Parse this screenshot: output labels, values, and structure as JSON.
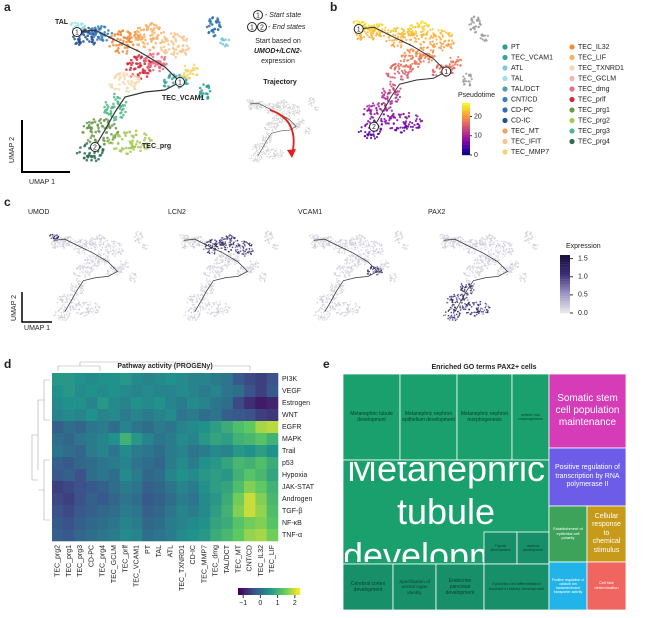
{
  "panel_a": {
    "label": "a",
    "cluster_labels": [
      "TAL",
      "TEC_VCAM1",
      "TEC_prg"
    ],
    "state_numbers": [
      "1",
      "1",
      "2"
    ],
    "axis_labels": {
      "x": "UMAP 1",
      "y": "UMAP 2"
    },
    "key": {
      "start_num": "1",
      "start": "- Start state",
      "end_nums": [
        "1",
        "2"
      ],
      "end": "- End states",
      "note": [
        "Start based on",
        "UMOD+/LCN2-",
        "expression"
      ],
      "trajectory": "Trajectory"
    }
  },
  "panel_b": {
    "label": "b",
    "state_numbers": [
      "1",
      "1",
      "2"
    ],
    "legend": [
      {
        "name": "PT",
        "color": "#2a9d8f"
      },
      {
        "name": "TEC_VCAM1",
        "color": "#38a3a5"
      },
      {
        "name": "ATL",
        "color": "#7fc8d6"
      },
      {
        "name": "TAL",
        "color": "#9fe0e8"
      },
      {
        "name": "TAL/DCT",
        "color": "#4aa0b5"
      },
      {
        "name": "CNT/CD",
        "color": "#3a7fc1"
      },
      {
        "name": "CD-PC",
        "color": "#2f6fb0"
      },
      {
        "name": "CD-IC",
        "color": "#234f96"
      },
      {
        "name": "TEC_MT",
        "color": "#f4a261"
      },
      {
        "name": "TEC_IFIT",
        "color": "#f6c58f"
      },
      {
        "name": "TEC_MMP7",
        "color": "#f2d36b"
      },
      {
        "name": "TEC_IL32",
        "color": "#f08c3a"
      },
      {
        "name": "TEC_LIF",
        "color": "#f7b267"
      },
      {
        "name": "TEC_TXNRD1",
        "color": "#f3d9b1"
      },
      {
        "name": "TEC_GCLM",
        "color": "#f2b5a7"
      },
      {
        "name": "TEC_dmg",
        "color": "#e76f85"
      },
      {
        "name": "TEC_prlf",
        "color": "#d62839"
      },
      {
        "name": "TEC_prg1",
        "color": "#6a994e"
      },
      {
        "name": "TEC_prg2",
        "color": "#a7c957"
      },
      {
        "name": "TEC_prg3",
        "color": "#52b788"
      },
      {
        "name": "TEC_prg4",
        "color": "#2d6a4f"
      }
    ],
    "colorbar": {
      "title": "Pseudotime",
      "lim": [
        0,
        27
      ],
      "ticks": [
        0,
        10,
        20
      ]
    }
  },
  "panel_c": {
    "label": "c",
    "genes": [
      "UMOD",
      "LCN2",
      "VCAM1",
      "PAX2"
    ],
    "axis_labels": {
      "x": "UMAP 1",
      "y": "UMAP 2"
    },
    "colorbar": {
      "title": "Expression",
      "lim": [
        0,
        1.6
      ],
      "ticks": [
        {
          "value": 0,
          "label": "0.0"
        },
        {
          "value": 0.5,
          "label": "0.5"
        },
        {
          "value": 1,
          "label": "1.0"
        },
        {
          "value": 1.5,
          "label": "1.5"
        }
      ]
    }
  },
  "panel_d": {
    "label": "d",
    "title": "Pathway activity (PROGENy)",
    "rows": [
      "PI3K",
      "VEGF",
      "Estrogen",
      "WNT",
      "EGFR",
      "MAPK",
      "Trail",
      "p53",
      "Hypoxia",
      "JAK-STAT",
      "Androgen",
      "TGF-β",
      "NF-κB",
      "TNF-α"
    ],
    "columns": [
      "TEC_prg2",
      "TEC_prg1",
      "TEC_prg3",
      "CD-PC",
      "TEC_prg4",
      "TEC_GCLM",
      "TEC_prlf",
      "TEC_VCAM1",
      "PT",
      "TAL",
      "ATL",
      "TEC_TXNRD1",
      "CD-IC",
      "TEC_MMP7",
      "TEC_dmg",
      "TAL/DCT",
      "TEC_MT",
      "CNT/CD",
      "TEC_IL32",
      "TEC_LIF"
    ],
    "values": [
      [
        0.6,
        0.6,
        0.5,
        0.4,
        0.5,
        0.5,
        0.6,
        0.4,
        0.3,
        0.4,
        0.5,
        0.4,
        0.3,
        0.3,
        0.2,
        0.1,
        -0.3,
        -0.5,
        -0.6,
        -0.4
      ],
      [
        0.5,
        0.6,
        0.4,
        0.5,
        0.4,
        0.5,
        0.4,
        0.3,
        0.4,
        0.3,
        0.3,
        0.4,
        0.3,
        0.2,
        0.3,
        0.1,
        0.0,
        -0.4,
        -0.6,
        -0.3
      ],
      [
        0.4,
        0.5,
        0.5,
        0.3,
        0.6,
        0.4,
        0.3,
        0.5,
        0.4,
        0.5,
        0.3,
        0.2,
        0.4,
        0.3,
        0.1,
        0.0,
        -0.5,
        -0.8,
        -1.0,
        -0.9
      ],
      [
        0.3,
        0.4,
        0.3,
        0.5,
        0.3,
        0.4,
        0.2,
        0.3,
        0.2,
        0.3,
        0.4,
        0.1,
        0.2,
        0.0,
        0.1,
        -0.2,
        -0.3,
        -0.4,
        -0.6,
        -0.7
      ],
      [
        -0.2,
        0.0,
        -0.1,
        0.1,
        0.2,
        0.0,
        0.3,
        0.1,
        0.0,
        0.2,
        0.1,
        0.3,
        0.4,
        0.5,
        0.7,
        0.9,
        1.2,
        1.4,
        1.8,
        1.9
      ],
      [
        0.0,
        -0.1,
        0.1,
        0.2,
        0.3,
        0.5,
        1.0,
        0.6,
        0.3,
        0.1,
        0.2,
        0.4,
        0.3,
        0.6,
        0.8,
        0.7,
        1.0,
        1.1,
        1.3,
        1.0
      ],
      [
        0.1,
        0.0,
        -0.1,
        0.2,
        0.3,
        0.1,
        0.4,
        0.2,
        0.1,
        0.0,
        0.2,
        0.3,
        0.1,
        0.2,
        0.4,
        0.3,
        0.6,
        0.5,
        0.7,
        0.5
      ],
      [
        -0.2,
        -0.3,
        -0.1,
        0.0,
        0.1,
        0.2,
        0.3,
        0.1,
        0.0,
        -0.1,
        0.2,
        0.4,
        0.2,
        0.5,
        0.6,
        0.8,
        1.1,
        1.0,
        1.2,
        0.9
      ],
      [
        -0.3,
        -0.2,
        -0.4,
        0.0,
        0.1,
        0.0,
        0.4,
        0.2,
        -0.1,
        0.0,
        0.3,
        0.5,
        0.4,
        0.6,
        0.7,
        0.6,
        1.0,
        1.3,
        1.1,
        0.8
      ],
      [
        -0.6,
        -0.5,
        -0.4,
        -0.3,
        -0.2,
        0.0,
        0.2,
        0.1,
        -0.2,
        -0.1,
        0.1,
        0.3,
        0.2,
        0.5,
        0.7,
        0.8,
        1.2,
        1.6,
        1.4,
        1.0
      ],
      [
        -0.5,
        -0.6,
        -0.4,
        -0.2,
        -0.3,
        -0.1,
        0.1,
        0.0,
        -0.3,
        -0.2,
        0.0,
        0.2,
        0.1,
        0.4,
        0.6,
        0.9,
        1.5,
        2.0,
        1.6,
        1.1
      ],
      [
        -0.4,
        -0.5,
        -0.3,
        -0.2,
        -0.1,
        0.0,
        0.2,
        0.1,
        -0.2,
        -0.1,
        0.1,
        0.3,
        0.2,
        0.4,
        0.7,
        1.0,
        1.6,
        2.0,
        1.7,
        1.2
      ],
      [
        -0.3,
        -0.4,
        -0.2,
        -0.1,
        0.0,
        0.1,
        0.3,
        0.2,
        -0.1,
        0.0,
        0.2,
        0.3,
        0.4,
        0.5,
        0.8,
        0.9,
        1.3,
        1.5,
        1.6,
        1.3
      ],
      [
        -0.2,
        -0.3,
        -0.1,
        0.0,
        0.1,
        0.2,
        0.4,
        0.3,
        0.0,
        0.1,
        0.2,
        0.4,
        0.5,
        0.6,
        0.9,
        1.1,
        1.4,
        1.7,
        1.8,
        1.5
      ]
    ],
    "colorbar": {
      "lim": [
        -1.3,
        2.3
      ],
      "ticks": [
        {
          "value": -1,
          "label": "−1"
        },
        0,
        1,
        2
      ]
    }
  },
  "panel_e": {
    "label": "e",
    "title": "Enriched GO terms PAX2+ cells",
    "tiles": [
      "Metanephric tubule development",
      "Metanephric nephron epithelium development",
      "Metanephric nephron morphogenesis",
      "ureteric bud morphogenesis",
      "Metanephric tubule development",
      "Cerebral cortex development",
      "Specification of animal organ identity",
      "Endocrine pancreas development",
      "Thyroid development",
      "nephron development",
      "Epithelial cell differentiation involved in kidney development",
      "Somatic stem cell population maintenance",
      "Positive regulation of transcription by RNA polymerase II",
      "Establishment of epithelial cell polarity",
      "Cellular response to chemical stimulus",
      "Positive regulation of calcium ion transmembrane transporter activity",
      "Cell fate determination"
    ]
  }
}
